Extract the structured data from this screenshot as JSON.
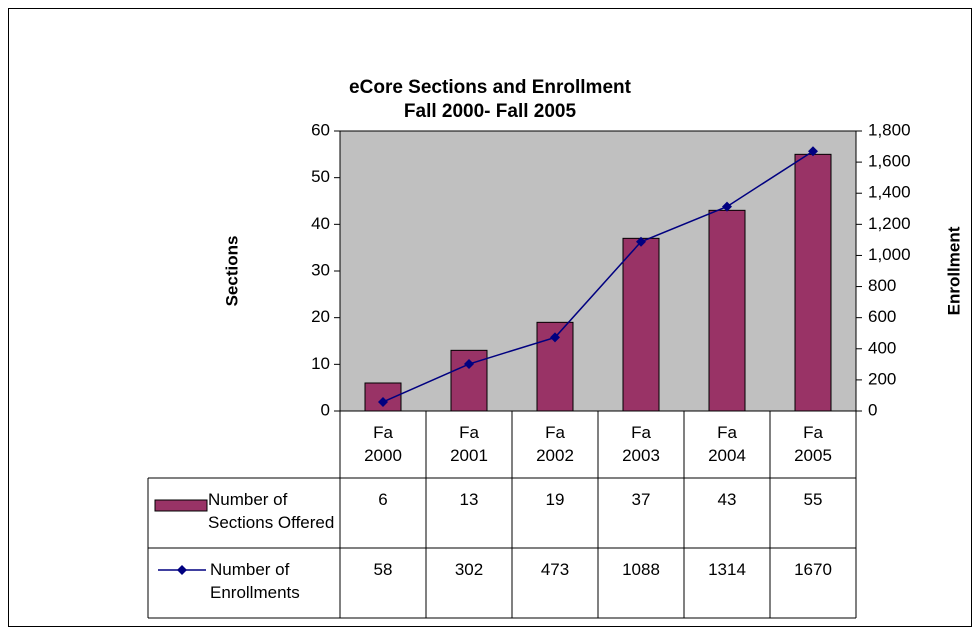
{
  "chart_data": {
    "type": "bar-line",
    "title": "eCore Sections and Enrollment",
    "subtitle": "Fall 2000- Fall 2005",
    "y_label": "Sections",
    "y2_label": "Enrollment",
    "categories": [
      "Fa 2000",
      "Fa 2001",
      "Fa 2002",
      "Fa 2003",
      "Fa 2004",
      "Fa 2005"
    ],
    "series": [
      {
        "name": "Number of Sections Offered",
        "type": "bar",
        "color": "#993366",
        "values": [
          6,
          13,
          19,
          37,
          43,
          55
        ]
      },
      {
        "name": "Number of Enrollments",
        "type": "line",
        "axis": "y2",
        "color": "#000080",
        "values": [
          58,
          302,
          473,
          1088,
          1314,
          1670
        ]
      }
    ],
    "ylim": [
      0,
      60
    ],
    "yticks": [
      0,
      10,
      20,
      30,
      40,
      50,
      60
    ],
    "y2lim": [
      0,
      1800
    ],
    "y2ticks": [
      0,
      200,
      400,
      600,
      800,
      {
        "value": 1000,
        "label": "1,000"
      },
      {
        "value": 1200,
        "label": "1,200"
      },
      {
        "value": 1400,
        "label": "1,400"
      },
      {
        "value": 1600,
        "label": "1,600"
      },
      {
        "value": 1800,
        "label": "1,800"
      }
    ],
    "plot_background": "#c0c0c0"
  }
}
